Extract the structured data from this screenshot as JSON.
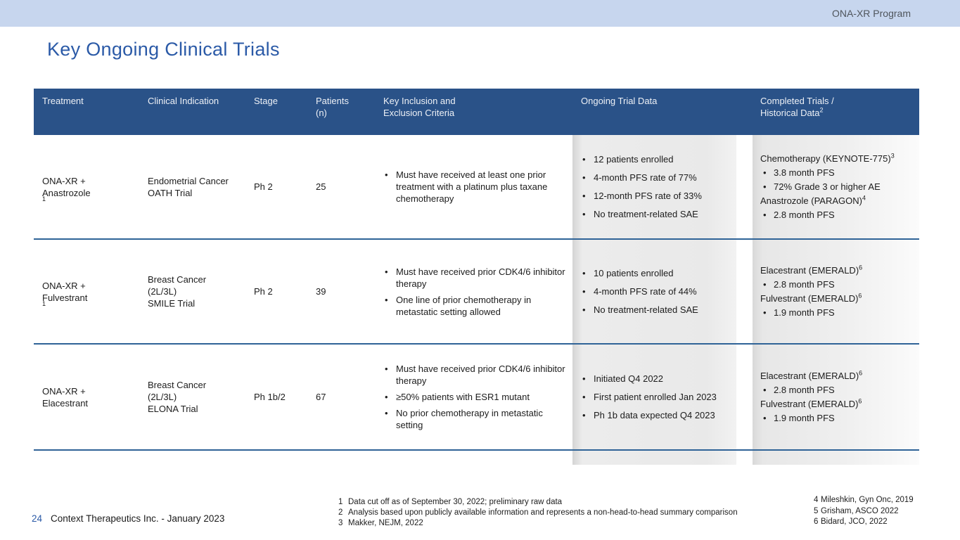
{
  "banner": {
    "program_label": "ONA-XR Program"
  },
  "title": "Key Ongoing Clinical Trials",
  "colors": {
    "banner_bg": "#c7d6ee",
    "header_bg": "#2a5288",
    "accent_blue": "#2b5aa7",
    "row_separator": "#2f6397",
    "gray_column": "#e9e9e9"
  },
  "table": {
    "headers": {
      "treatment": "Treatment",
      "indication": "Clinical Indication",
      "stage": "Stage",
      "patients": "Patients\n(n)",
      "criteria": "Key Inclusion and\nExclusion Criteria",
      "ongoing": "Ongoing Trial Data",
      "completed": "Completed Trials /\nHistorical Data^2"
    },
    "rows": [
      {
        "treatment": "ONA-XR +\nAnastrozole^1",
        "indication": "Endometrial Cancer\nOATH Trial",
        "stage": "Ph 2",
        "patients": "25",
        "criteria": [
          "Must have received at least one prior treatment with a platinum plus taxane chemotherapy"
        ],
        "ongoing": [
          "12 patients enrolled",
          "4-month PFS rate of 77%",
          "12-month PFS rate of 33%",
          "No treatment-related SAE"
        ],
        "completed": [
          {
            "type": "heading",
            "text": "Chemotherapy (KEYNOTE-775)^3"
          },
          {
            "type": "bullet",
            "text": "3.8 month PFS"
          },
          {
            "type": "bullet",
            "text": "72% Grade 3 or higher AE"
          },
          {
            "type": "heading",
            "text": "Anastrozole (PARAGON)^4"
          },
          {
            "type": "bullet",
            "text": "2.8 month PFS"
          }
        ]
      },
      {
        "treatment": "ONA-XR +\nFulvestrant^1",
        "indication": "Breast Cancer\n(2L/3L)\nSMILE Trial",
        "stage": "Ph 2",
        "patients": "39",
        "criteria": [
          "Must have received prior CDK4/6 inhibitor therapy",
          "One line of prior chemotherapy in metastatic setting allowed"
        ],
        "ongoing": [
          "10 patients enrolled",
          "4-month PFS rate of 44%",
          "No treatment-related SAE"
        ],
        "completed": [
          {
            "type": "heading",
            "text": "Elacestrant (EMERALD)^6"
          },
          {
            "type": "bullet",
            "text": "2.8 month PFS"
          },
          {
            "type": "heading",
            "text": "Fulvestrant (EMERALD)^6"
          },
          {
            "type": "bullet",
            "text": "1.9 month PFS"
          }
        ]
      },
      {
        "treatment": "ONA-XR +\nElacestrant",
        "indication": "Breast Cancer\n(2L/3L)\nELONA Trial",
        "stage": "Ph 1b/2",
        "patients": "67",
        "criteria": [
          "Must have received prior CDK4/6 inhibitor therapy",
          "≥50% patients with ESR1 mutant",
          "No prior chemotherapy in metastatic setting"
        ],
        "ongoing": [
          "Initiated Q4 2022",
          "First patient enrolled Jan 2023",
          "Ph 1b data expected Q4 2023"
        ],
        "completed": [
          {
            "type": "heading",
            "text": "Elacestrant (EMERALD)^6"
          },
          {
            "type": "bullet",
            "text": "2.8 month PFS"
          },
          {
            "type": "heading",
            "text": "Fulvestrant (EMERALD)^6"
          },
          {
            "type": "bullet",
            "text": "1.9 month PFS"
          }
        ]
      }
    ]
  },
  "footer": {
    "page_number": "24",
    "company": "Context Therapeutics Inc. - January 2023",
    "footnotes_center": [
      {
        "num": "1",
        "text": "Data cut off as of September 30, 2022; preliminary raw data"
      },
      {
        "num": "2",
        "text": "Analysis based upon publicly available information and represents a non-head-to-head summary comparison"
      },
      {
        "num": "3",
        "text": "Makker, NEJM, 2022"
      }
    ],
    "footnotes_right": [
      {
        "num": "4",
        "text": "Mileshkin, Gyn Onc, 2019"
      },
      {
        "num": "5",
        "text": "Grisham, ASCO 2022"
      },
      {
        "num": "6",
        "text": "Bidard, JCO, 2022"
      }
    ]
  }
}
